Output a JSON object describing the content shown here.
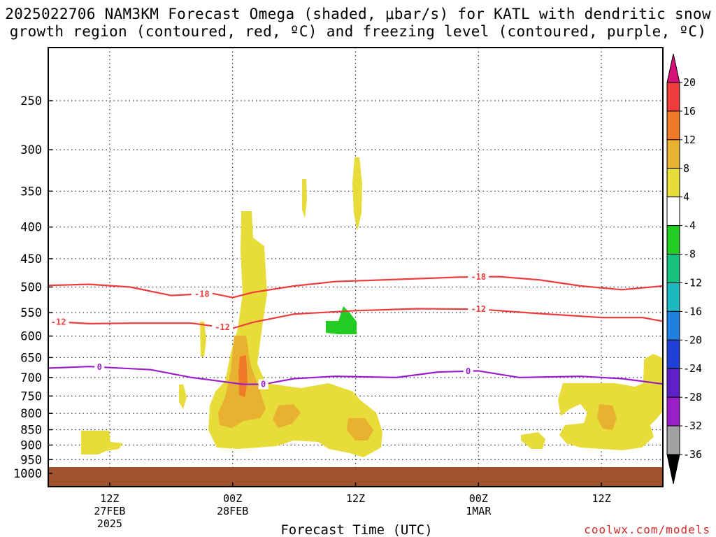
{
  "header": {
    "title_line1": "2025022706 NAM3KM Forecast Omega (shaded, μbar/s) for KATL with dendritic snow",
    "title_line2": "growth region (contoured, red, ºC) and freezing level (contoured, purple, ºC)"
  },
  "footer": {
    "xaxis_title": "Forecast Time (UTC)",
    "credit": "coolwx.com/models"
  },
  "chart_data": {
    "type": "heatmap",
    "y_axis": {
      "quantity": "pressure (hPa)",
      "scale": "log",
      "inverted": true,
      "range": [
        1050,
        200
      ],
      "ticks": [
        250,
        300,
        350,
        400,
        450,
        500,
        550,
        600,
        650,
        700,
        750,
        800,
        850,
        900,
        950,
        1000
      ],
      "tick_labels": [
        "250",
        "300",
        "350",
        "400",
        "450",
        "500",
        "550",
        "600",
        "650",
        "700",
        "750",
        "800",
        "850",
        "900",
        "950",
        "1000"
      ]
    },
    "x_axis": {
      "quantity": "forecast time (UTC)",
      "range": [
        "2025-02-27 06Z",
        "2025-03-01 18Z"
      ],
      "ticks": [
        {
          "time": "2025-02-27 12Z",
          "label": "12Z",
          "sub1": "27FEB",
          "sub2": "2025"
        },
        {
          "time": "2025-02-28 00Z",
          "label": "00Z",
          "sub1": "28FEB",
          "sub2": ""
        },
        {
          "time": "2025-02-28 12Z",
          "label": "12Z",
          "sub1": "",
          "sub2": ""
        },
        {
          "time": "2025-03-01 00Z",
          "label": "00Z",
          "sub1": "1MAR",
          "sub2": ""
        },
        {
          "time": "2025-03-01 12Z",
          "label": "12Z",
          "sub1": "",
          "sub2": ""
        }
      ]
    },
    "grid": "dotted",
    "colorbar": {
      "labels": [
        "20",
        "16",
        "12",
        "8",
        "4",
        "-4",
        "-8",
        "-12",
        "-16",
        "-20",
        "-24",
        "-28",
        "-32",
        "-36"
      ],
      "colors": [
        "#d6127a",
        "#ee3b3b",
        "#f07a28",
        "#e8b230",
        "#e8dc3a",
        "#ffffff",
        "#22cc22",
        "#18c080",
        "#1cb8c0",
        "#2080e0",
        "#2040d8",
        "#6020c8",
        "#9b1fc9",
        "#a0a0a0",
        "#000000"
      ]
    },
    "contours": [
      {
        "label": "-18",
        "color": "#ee3b3b",
        "points": [
          [
            "2025-02-27 06Z",
            497
          ],
          [
            "2025-02-27 10Z",
            495
          ],
          [
            "2025-02-27 14Z",
            500
          ],
          [
            "2025-02-27 18Z",
            516
          ],
          [
            "2025-02-27 22Z",
            512
          ],
          [
            "2025-02-28 00Z",
            520
          ],
          [
            "2025-02-28 02Z",
            510
          ],
          [
            "2025-02-28 06Z",
            498
          ],
          [
            "2025-02-28 10Z",
            490
          ],
          [
            "2025-02-28 16Z",
            486
          ],
          [
            "2025-02-28 22Z",
            482
          ],
          [
            "2025-03-01 02Z",
            481
          ],
          [
            "2025-03-01 06Z",
            487
          ],
          [
            "2025-03-01 10Z",
            498
          ],
          [
            "2025-03-01 14Z",
            505
          ],
          [
            "2025-03-01 18Z",
            498
          ]
        ],
        "label_positions": [
          "2025-02-27 21Z",
          "2025-03-01 00Z"
        ]
      },
      {
        "label": "-12",
        "color": "#ee3b3b",
        "points": [
          [
            "2025-02-27 06Z",
            568
          ],
          [
            "2025-02-27 10Z",
            573
          ],
          [
            "2025-02-27 14Z",
            572
          ],
          [
            "2025-02-27 20Z",
            572
          ],
          [
            "2025-02-27 22Z",
            578
          ],
          [
            "2025-02-28 00Z",
            583
          ],
          [
            "2025-02-28 02Z",
            570
          ],
          [
            "2025-02-28 06Z",
            553
          ],
          [
            "2025-02-28 12Z",
            546
          ],
          [
            "2025-02-28 18Z",
            542
          ],
          [
            "2025-03-01 00Z",
            543
          ],
          [
            "2025-03-01 06Z",
            552
          ],
          [
            "2025-03-01 12Z",
            560
          ],
          [
            "2025-03-01 16Z",
            560
          ],
          [
            "2025-03-01 18Z",
            568
          ]
        ],
        "label_positions": [
          "2025-02-27 07Z",
          "2025-02-27 23Z",
          "2025-03-01 00Z"
        ]
      },
      {
        "label": "0",
        "color": "#9b1fc9",
        "points": [
          [
            "2025-02-27 06Z",
            676
          ],
          [
            "2025-02-27 10Z",
            672
          ],
          [
            "2025-02-27 16Z",
            680
          ],
          [
            "2025-02-27 20Z",
            700
          ],
          [
            "2025-02-27 22Z",
            707
          ],
          [
            "2025-02-28 01Z",
            718
          ],
          [
            "2025-02-28 03Z",
            718
          ],
          [
            "2025-02-28 06Z",
            703
          ],
          [
            "2025-02-28 10Z",
            697
          ],
          [
            "2025-02-28 16Z",
            700
          ],
          [
            "2025-02-28 20Z",
            686
          ],
          [
            "2025-03-01 00Z",
            683
          ],
          [
            "2025-03-01 04Z",
            700
          ],
          [
            "2025-03-01 10Z",
            697
          ],
          [
            "2025-03-01 14Z",
            703
          ],
          [
            "2025-03-01 18Z",
            717
          ]
        ],
        "label_positions": [
          "2025-02-27 11Z",
          "2025-02-28 03Z",
          "2025-02-28 23Z"
        ]
      }
    ],
    "omega_regions": [
      {
        "value": "4 to 8",
        "color": "#e8dc3a",
        "note": "column near 28FEB 00Z-06Z from ~380 to ~900 hPa"
      },
      {
        "value": "8 to 12",
        "color": "#e8b230",
        "note": "cores near 650-850 hPa around 28FEB 00Z-12Z"
      },
      {
        "value": "12 to 16",
        "color": "#f07a28",
        "note": "small core near 650-700 hPa at 28FEB 00Z"
      },
      {
        "value": "-8 to -4",
        "color": "#22cc22",
        "note": "patch near 570-600 hPa around 28FEB 10Z"
      },
      {
        "value": "4 to 8",
        "color": "#e8dc3a",
        "note": "cells near 330-400 hPa around 28FEB 08Z-12Z"
      },
      {
        "value": "4 to 8",
        "color": "#e8dc3a",
        "note": "band 650-900 hPa from 1MAR 08Z to 18Z"
      }
    ]
  }
}
